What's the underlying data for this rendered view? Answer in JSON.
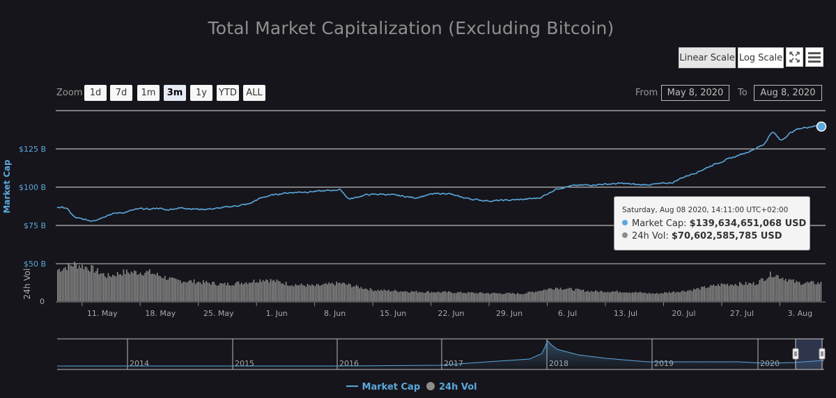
{
  "scale_buttons": {
    "linear": "Linear Scale",
    "log": "Log Scale"
  },
  "icons": {
    "fullscreen": "fullscreen-icon",
    "menu": "hamburger-menu-icon"
  },
  "zoom": {
    "label": "Zoom",
    "options": [
      "1d",
      "7d",
      "1m",
      "3m",
      "1y",
      "YTD",
      "ALL"
    ],
    "selected": "3m"
  },
  "range": {
    "from_label": "From",
    "from_value": "May 8, 2020",
    "to_label": "To",
    "to_value": "Aug 8, 2020"
  },
  "tooltip": {
    "date": "Saturday, Aug 08 2020, 14:11:00 UTC+02:00",
    "mc_label": "Market Cap:",
    "mc_value": "$139,634,651,068 USD",
    "vol_label": "24h Vol:",
    "vol_value": "$70,602,585,785 USD"
  },
  "legend": {
    "market_cap": "Market Cap",
    "volume": "24h Vol"
  },
  "colors": {
    "market_cap": "#5ba8dc",
    "volume": "#8c8c8c",
    "background": "#16151b"
  },
  "chart_data": {
    "type": "line",
    "title": "Total Market Capitalization (Excluding Bitcoin)",
    "scale": "linear",
    "x_range": [
      "2020-05-08",
      "2020-08-08"
    ],
    "x_ticks": [
      "11. May",
      "18. May",
      "25. May",
      "1. Jun",
      "8. Jun",
      "15. Jun",
      "22. Jun",
      "29. Jun",
      "6. Jul",
      "13. Jul",
      "20. Jul",
      "27. Jul",
      "3. Aug"
    ],
    "y_axis": {
      "label": "Market Cap",
      "ticks": [
        "$50 B",
        "$75 B",
        "$100 B",
        "$125 B"
      ],
      "tick_values": [
        50,
        75,
        100,
        125
      ],
      "unit": "USD billions"
    },
    "y2_axis": {
      "label": "24h Vol",
      "ticks": [
        "0"
      ]
    },
    "series": [
      {
        "name": "Market Cap",
        "unit": "USD billions",
        "points": [
          [
            "2020-05-08",
            87
          ],
          [
            "2020-05-09",
            86.5
          ],
          [
            "2020-05-10",
            80
          ],
          [
            "2020-05-11",
            79
          ],
          [
            "2020-05-12",
            78
          ],
          [
            "2020-05-13",
            79.5
          ],
          [
            "2020-05-14",
            82
          ],
          [
            "2020-05-15",
            83
          ],
          [
            "2020-05-16",
            83.5
          ],
          [
            "2020-05-17",
            85
          ],
          [
            "2020-05-18",
            86
          ],
          [
            "2020-05-19",
            85.5
          ],
          [
            "2020-05-20",
            86.5
          ],
          [
            "2020-05-21",
            85
          ],
          [
            "2020-05-22",
            86
          ],
          [
            "2020-05-23",
            86.5
          ],
          [
            "2020-05-25",
            85.5
          ],
          [
            "2020-05-27",
            86
          ],
          [
            "2020-05-29",
            87.5
          ],
          [
            "2020-05-31",
            89
          ],
          [
            "2020-06-01",
            92
          ],
          [
            "2020-06-02",
            94
          ],
          [
            "2020-06-03",
            95
          ],
          [
            "2020-06-04",
            96
          ],
          [
            "2020-06-05",
            96.5
          ],
          [
            "2020-06-07",
            97
          ],
          [
            "2020-06-09",
            97.5
          ],
          [
            "2020-06-11",
            98.5
          ],
          [
            "2020-06-12",
            92
          ],
          [
            "2020-06-14",
            95
          ],
          [
            "2020-06-16",
            95.5
          ],
          [
            "2020-06-18",
            94.5
          ],
          [
            "2020-06-20",
            93
          ],
          [
            "2020-06-22",
            95.5
          ],
          [
            "2020-06-24",
            96
          ],
          [
            "2020-06-25",
            94
          ],
          [
            "2020-06-27",
            92
          ],
          [
            "2020-06-29",
            91
          ],
          [
            "2020-07-01",
            91.5
          ],
          [
            "2020-07-03",
            92
          ],
          [
            "2020-07-05",
            93
          ],
          [
            "2020-07-07",
            99
          ],
          [
            "2020-07-09",
            101
          ],
          [
            "2020-07-11",
            101.5
          ],
          [
            "2020-07-13",
            102
          ],
          [
            "2020-07-15",
            102.5
          ],
          [
            "2020-07-17",
            101.5
          ],
          [
            "2020-07-19",
            102
          ],
          [
            "2020-07-21",
            103
          ],
          [
            "2020-07-22",
            106
          ],
          [
            "2020-07-24",
            110
          ],
          [
            "2020-07-26",
            115
          ],
          [
            "2020-07-28",
            119
          ],
          [
            "2020-07-30",
            123
          ],
          [
            "2020-08-01",
            128
          ],
          [
            "2020-08-02",
            137
          ],
          [
            "2020-08-03",
            130
          ],
          [
            "2020-08-04",
            135
          ],
          [
            "2020-08-05",
            138
          ],
          [
            "2020-08-07",
            140
          ],
          [
            "2020-08-08",
            139.6
          ]
        ]
      },
      {
        "name": "24h Vol",
        "unit": "relative",
        "points": [
          [
            "2020-05-08",
            0.78
          ],
          [
            "2020-05-10",
            0.92
          ],
          [
            "2020-05-12",
            0.82
          ],
          [
            "2020-05-14",
            0.62
          ],
          [
            "2020-05-16",
            0.72
          ],
          [
            "2020-05-19",
            0.72
          ],
          [
            "2020-05-22",
            0.52
          ],
          [
            "2020-05-25",
            0.48
          ],
          [
            "2020-05-28",
            0.42
          ],
          [
            "2020-05-31",
            0.48
          ],
          [
            "2020-06-02",
            0.55
          ],
          [
            "2020-06-05",
            0.42
          ],
          [
            "2020-06-08",
            0.38
          ],
          [
            "2020-06-11",
            0.45
          ],
          [
            "2020-06-15",
            0.28
          ],
          [
            "2020-06-20",
            0.24
          ],
          [
            "2020-06-25",
            0.22
          ],
          [
            "2020-06-29",
            0.2
          ],
          [
            "2020-07-03",
            0.19
          ],
          [
            "2020-07-07",
            0.34
          ],
          [
            "2020-07-11",
            0.25
          ],
          [
            "2020-07-15",
            0.24
          ],
          [
            "2020-07-19",
            0.19
          ],
          [
            "2020-07-23",
            0.27
          ],
          [
            "2020-07-27",
            0.42
          ],
          [
            "2020-07-31",
            0.44
          ],
          [
            "2020-08-02",
            0.68
          ],
          [
            "2020-08-05",
            0.46
          ],
          [
            "2020-08-08",
            0.45
          ]
        ]
      }
    ],
    "navigator": {
      "x_ticks": [
        "2014",
        "2015",
        "2016",
        "2017",
        "2018",
        "2019",
        "2020"
      ],
      "selected_range": [
        "2020-05-08",
        "2020-08-08"
      ]
    },
    "legend_position": "bottom-center"
  }
}
